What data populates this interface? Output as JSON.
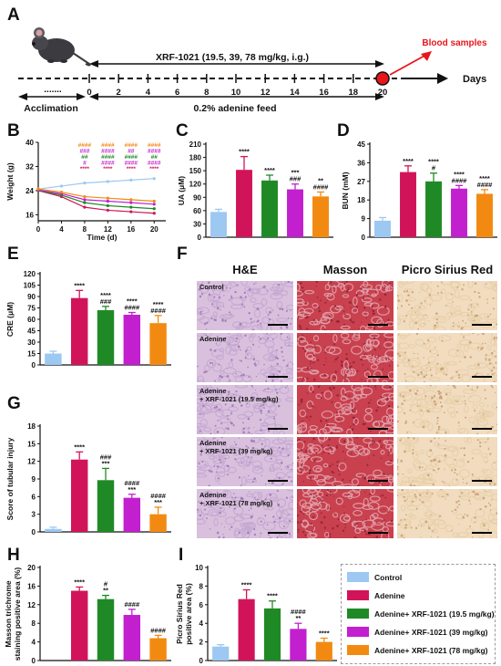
{
  "panels": {
    "A": "A",
    "B": "B",
    "C": "C",
    "D": "D",
    "E": "E",
    "F": "F",
    "G": "G",
    "H": "H",
    "I": "I"
  },
  "colors": {
    "control": "#9cc8f2",
    "adenine": "#d1145a",
    "x195": "#1f8a25",
    "x39": "#c21fcf",
    "x78": "#f28a12",
    "marker": "#e8161b",
    "annot_red": "#e8161b"
  },
  "timeline": {
    "title": "XRF-1021 (19.5, 39, 78 mg/kg, i.g.)",
    "blood_label": "Blood samples",
    "days_label": "Days",
    "dots": ".......",
    "ticks": [
      "0",
      "2",
      "4",
      "6",
      "8",
      "10",
      "12",
      "14",
      "16",
      "18",
      "20"
    ],
    "acclimation": "Acclimation",
    "feed": "0.2% adenine feed"
  },
  "chart_data": [
    {
      "id": "B",
      "type": "line",
      "xlabel": "Time (d)",
      "ylabel": "Weight (g)",
      "x": [
        0,
        4,
        8,
        12,
        16,
        20
      ],
      "xticks": [
        "0",
        "4",
        "8",
        "12",
        "16",
        "20"
      ],
      "yticks": [
        "16",
        "24",
        "32",
        "40"
      ],
      "ylim": [
        14,
        40
      ],
      "series": [
        {
          "name": "Control",
          "values": [
            24.5,
            25.5,
            26.5,
            27,
            27.5,
            28
          ]
        },
        {
          "name": "Adenine",
          "values": [
            24.0,
            22.0,
            18.5,
            17.5,
            17.0,
            16.5
          ]
        },
        {
          "name": "Adenine+ XRF-1021 (19.5 mg/kg)",
          "values": [
            24.0,
            22.5,
            20.0,
            19.0,
            18.5,
            18.0
          ]
        },
        {
          "name": "Adenine+ XRF-1021 (39 mg/kg)",
          "values": [
            24.2,
            23.0,
            21.0,
            20.5,
            20.0,
            19.5
          ]
        },
        {
          "name": "Adenine+ XRF-1021 (78 mg/kg)",
          "values": [
            24.5,
            23.5,
            22.0,
            21.5,
            21.0,
            20.5
          ]
        }
      ],
      "annotations": {
        "row1": [
          "####",
          "####",
          "####",
          "####"
        ],
        "row2": [
          "###",
          "####",
          "##",
          "####"
        ],
        "row3": [
          "##",
          "####",
          "####",
          "##"
        ],
        "row4": [
          "#",
          "####",
          "####",
          "####"
        ],
        "row5": [
          "****",
          "****",
          "****",
          "****"
        ]
      }
    },
    {
      "id": "C",
      "type": "bar",
      "ylabel": "UA (μM)",
      "yticks": [
        "0",
        "30",
        "60",
        "90",
        "120",
        "150",
        "180",
        "210"
      ],
      "ylim": [
        0,
        210
      ],
      "values": [
        57,
        152,
        128,
        108,
        92
      ],
      "errors": [
        6,
        30,
        12,
        12,
        10
      ],
      "annot_top": [
        "",
        "****",
        "****",
        "***",
        "**"
      ],
      "annot_bottom": [
        "",
        "",
        "",
        "###",
        "####"
      ]
    },
    {
      "id": "D",
      "type": "bar",
      "ylabel": "BUN (mM)",
      "yticks": [
        "0",
        "9",
        "18",
        "27",
        "36",
        "45"
      ],
      "ylim": [
        0,
        45
      ],
      "values": [
        8,
        31.5,
        27,
        23.5,
        21
      ],
      "errors": [
        1.5,
        3,
        4,
        1.5,
        2
      ],
      "annot_top": [
        "",
        "****",
        "****",
        "****",
        "****"
      ],
      "annot_bottom": [
        "",
        "",
        "#",
        "####",
        "####"
      ]
    },
    {
      "id": "E",
      "type": "bar",
      "ylabel": "CRE (μM)",
      "yticks": [
        "0",
        "15",
        "30",
        "45",
        "60",
        "75",
        "90",
        "105",
        "120"
      ],
      "ylim": [
        0,
        120
      ],
      "values": [
        15,
        88,
        72,
        66,
        55
      ],
      "errors": [
        3,
        10,
        5,
        3,
        10
      ],
      "annot_top": [
        "",
        "****",
        "****",
        "****",
        "****"
      ],
      "annot_bottom": [
        "",
        "",
        "###",
        "####",
        "####"
      ]
    },
    {
      "id": "G",
      "type": "bar",
      "ylabel": "Score of tubular injury",
      "yticks": [
        "0",
        "3",
        "6",
        "9",
        "12",
        "15",
        "18"
      ],
      "ylim": [
        0,
        18
      ],
      "values": [
        0.5,
        12.3,
        8.8,
        5.8,
        3
      ],
      "errors": [
        0.3,
        1.3,
        2.0,
        0.6,
        1.2
      ],
      "annot_top": [
        "",
        "****",
        "###",
        "####",
        "####"
      ],
      "annot_bottom": [
        "",
        "",
        "***",
        "***",
        "***"
      ]
    },
    {
      "id": "H",
      "type": "bar",
      "ylabel": "Masson trichrome staining positive area (%)",
      "ylabel_lines": [
        "Masson trichrome",
        "staining positive area (%)"
      ],
      "yticks": [
        "0",
        "4",
        "8",
        "12",
        "16",
        "20"
      ],
      "ylim": [
        0,
        20
      ],
      "values": [
        0,
        15,
        13.2,
        9.8,
        4.8
      ],
      "errors": [
        0,
        0.8,
        0.8,
        1.2,
        0.6
      ],
      "annot_top": [
        "",
        "****",
        "#",
        "####",
        "####"
      ],
      "annot_bottom": [
        "",
        "",
        "**",
        "",
        ""
      ]
    },
    {
      "id": "I",
      "type": "bar",
      "ylabel": "Picro Sirius Red positive area (%)",
      "ylabel_lines": [
        "Picro Sirius Red",
        "positive area (%)"
      ],
      "yticks": [
        "0",
        "2",
        "4",
        "6",
        "8",
        "10"
      ],
      "ylim": [
        0,
        10
      ],
      "values": [
        1.5,
        6.6,
        5.6,
        3.4,
        2.0
      ],
      "errors": [
        0.2,
        1.0,
        0.8,
        0.6,
        0.4
      ],
      "annot_top": [
        "",
        "****",
        "****",
        "####",
        "****"
      ],
      "annot_bottom": [
        "",
        "",
        "",
        "**",
        ""
      ]
    }
  ],
  "micro": {
    "columns": [
      "H&E",
      "Masson",
      "Picro Sirius Red"
    ],
    "rows": [
      {
        "label": "Control"
      },
      {
        "label": "Adenine"
      },
      {
        "label": "Adenine\n+ XRF-1021 (19.5 mg/kg)"
      },
      {
        "label": "Adenine\n+ XRF-1021 (39 mg/kg)"
      },
      {
        "label": "Adenine\n+ XRF-1021 (78 mg/kg)"
      }
    ]
  },
  "legend": {
    "items": [
      {
        "label": "Control",
        "color": "#9cc8f2"
      },
      {
        "label": "Adenine",
        "color": "#d1145a"
      },
      {
        "label": "Adenine+ XRF-1021 (19.5 mg/kg)",
        "color": "#1f8a25"
      },
      {
        "label": "Adenine+ XRF-1021 (39 mg/kg)",
        "color": "#c21fcf"
      },
      {
        "label": "Adenine+ XRF-1021 (78 mg/kg)",
        "color": "#f28a12"
      }
    ]
  }
}
